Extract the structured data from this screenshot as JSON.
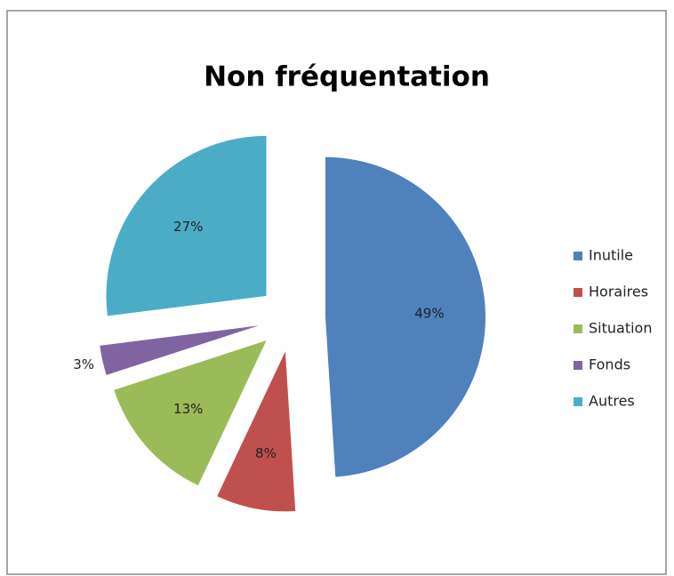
{
  "chart_data": {
    "type": "pie",
    "title": "Non fréquentation",
    "categories": [
      "Inutile",
      "Horaires",
      "Situation",
      "Fonds",
      "Autres"
    ],
    "values": [
      49,
      8,
      13,
      3,
      27
    ],
    "value_labels": [
      "49%",
      "8%",
      "13%",
      "3%",
      "27%"
    ],
    "colors": [
      "#4f81bd",
      "#c0504d",
      "#9bbb59",
      "#8064a2",
      "#4bacc6"
    ],
    "legend": "right"
  }
}
